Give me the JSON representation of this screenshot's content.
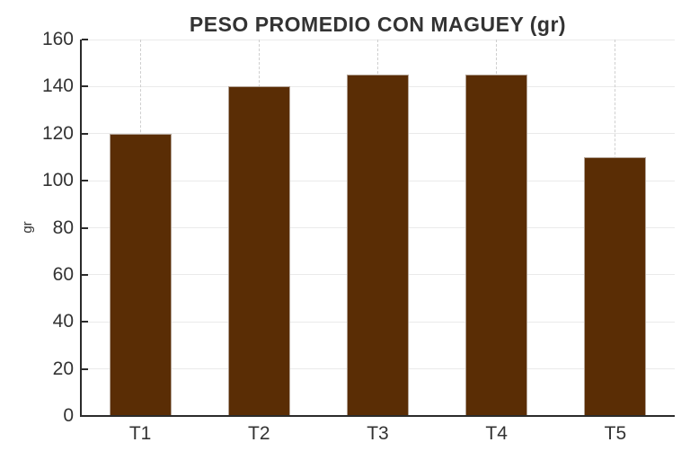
{
  "chart_data": {
    "type": "bar",
    "title": "PESO PROMEDIO CON MAGUEY (gr)",
    "categories": [
      "T1",
      "T2",
      "T3",
      "T4",
      "T5"
    ],
    "values": [
      120,
      140,
      145,
      145,
      110
    ],
    "xlabel": "",
    "ylabel": "gr",
    "ylim": [
      0,
      160
    ],
    "yticks": [
      0,
      20,
      40,
      60,
      80,
      100,
      120,
      140,
      160
    ],
    "legend": "none",
    "grid": "solid horizontal gridlines at y ticks, dashed vertical gridlines at bar centers",
    "bar_color": "#5A2D05",
    "bar_edge_color": "#b3a396",
    "axis_color": "#2b2b2b",
    "gridline_color": "#eaeaea",
    "dashed_gridline_color": "#cfcfcf",
    "text_color": "#333333"
  }
}
